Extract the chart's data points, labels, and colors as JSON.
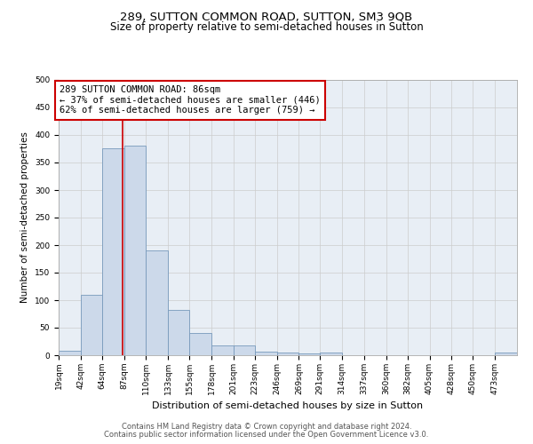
{
  "title": "289, SUTTON COMMON ROAD, SUTTON, SM3 9QB",
  "subtitle": "Size of property relative to semi-detached houses in Sutton",
  "xlabel": "Distribution of semi-detached houses by size in Sutton",
  "ylabel": "Number of semi-detached properties",
  "bar_values": [
    8,
    110,
    375,
    380,
    190,
    83,
    40,
    18,
    18,
    7,
    5,
    4,
    5,
    0,
    0,
    0,
    0,
    0,
    0,
    0,
    5
  ],
  "bin_edges": [
    19,
    42,
    64,
    87,
    110,
    133,
    155,
    178,
    201,
    223,
    246,
    269,
    291,
    314,
    337,
    360,
    382,
    405,
    428,
    450,
    473,
    496
  ],
  "tick_labels": [
    "19sqm",
    "42sqm",
    "64sqm",
    "87sqm",
    "110sqm",
    "133sqm",
    "155sqm",
    "178sqm",
    "201sqm",
    "223sqm",
    "246sqm",
    "269sqm",
    "291sqm",
    "314sqm",
    "337sqm",
    "360sqm",
    "382sqm",
    "405sqm",
    "428sqm",
    "450sqm",
    "473sqm"
  ],
  "bar_color": "#ccd9ea",
  "bar_edge_color": "#7799bb",
  "property_value": 86,
  "annotation_title": "289 SUTTON COMMON ROAD: 86sqm",
  "annotation_line1": "← 37% of semi-detached houses are smaller (446)",
  "annotation_line2": "62% of semi-detached houses are larger (759) →",
  "annotation_box_color": "#ffffff",
  "annotation_box_edge_color": "#cc0000",
  "red_line_color": "#cc0000",
  "ylim": [
    0,
    500
  ],
  "grid_color": "#cccccc",
  "background_color": "#e8eef5",
  "footer_line1": "Contains HM Land Registry data © Crown copyright and database right 2024.",
  "footer_line2": "Contains public sector information licensed under the Open Government Licence v3.0.",
  "title_fontsize": 9.5,
  "subtitle_fontsize": 8.5,
  "ylabel_fontsize": 7.5,
  "xlabel_fontsize": 8,
  "tick_fontsize": 6.5,
  "annotation_fontsize": 7.5,
  "footer_fontsize": 6
}
